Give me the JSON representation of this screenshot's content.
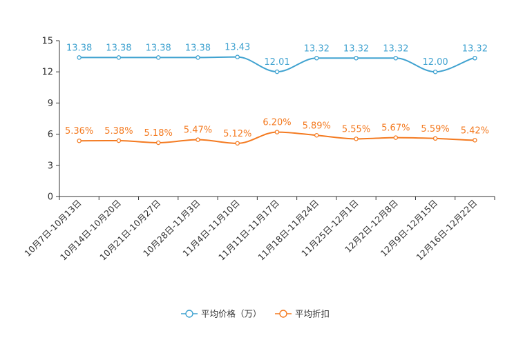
{
  "chart_data": {
    "type": "line",
    "title": "",
    "xlabel": "",
    "ylabel": "",
    "ylim": [
      0,
      15
    ],
    "yticks": [
      0,
      3,
      6,
      9,
      12,
      15
    ],
    "grid": false,
    "legend_position": "bottom-center",
    "categories": [
      "10月7日-10月13日",
      "10月14日-10月20日",
      "10月21日-10月27日",
      "10月28日-11月3日",
      "11月4日-11月10日",
      "11月11日-11月17日",
      "11月18日-11月24日",
      "11月25日-12月1日",
      "12月2日-12月8日",
      "12月9日-12月15日",
      "12月16日-12月22日"
    ],
    "series": [
      {
        "name": "平均价格（万）",
        "color": "#3fa2d0",
        "values": [
          13.38,
          13.38,
          13.38,
          13.38,
          13.43,
          12.01,
          13.32,
          13.32,
          13.32,
          12.0,
          13.32
        ],
        "labels": [
          "13.38",
          "13.38",
          "13.38",
          "13.38",
          "13.43",
          "12.01",
          "13.32",
          "13.32",
          "13.32",
          "12.00",
          "13.32"
        ]
      },
      {
        "name": "平均折扣",
        "color": "#f47a20",
        "values": [
          5.36,
          5.38,
          5.18,
          5.47,
          5.12,
          6.2,
          5.89,
          5.55,
          5.67,
          5.59,
          5.42
        ],
        "labels": [
          "5.36%",
          "5.38%",
          "5.18%",
          "5.47%",
          "5.12%",
          "6.20%",
          "5.89%",
          "5.55%",
          "5.67%",
          "5.59%",
          "5.42%"
        ]
      }
    ]
  }
}
